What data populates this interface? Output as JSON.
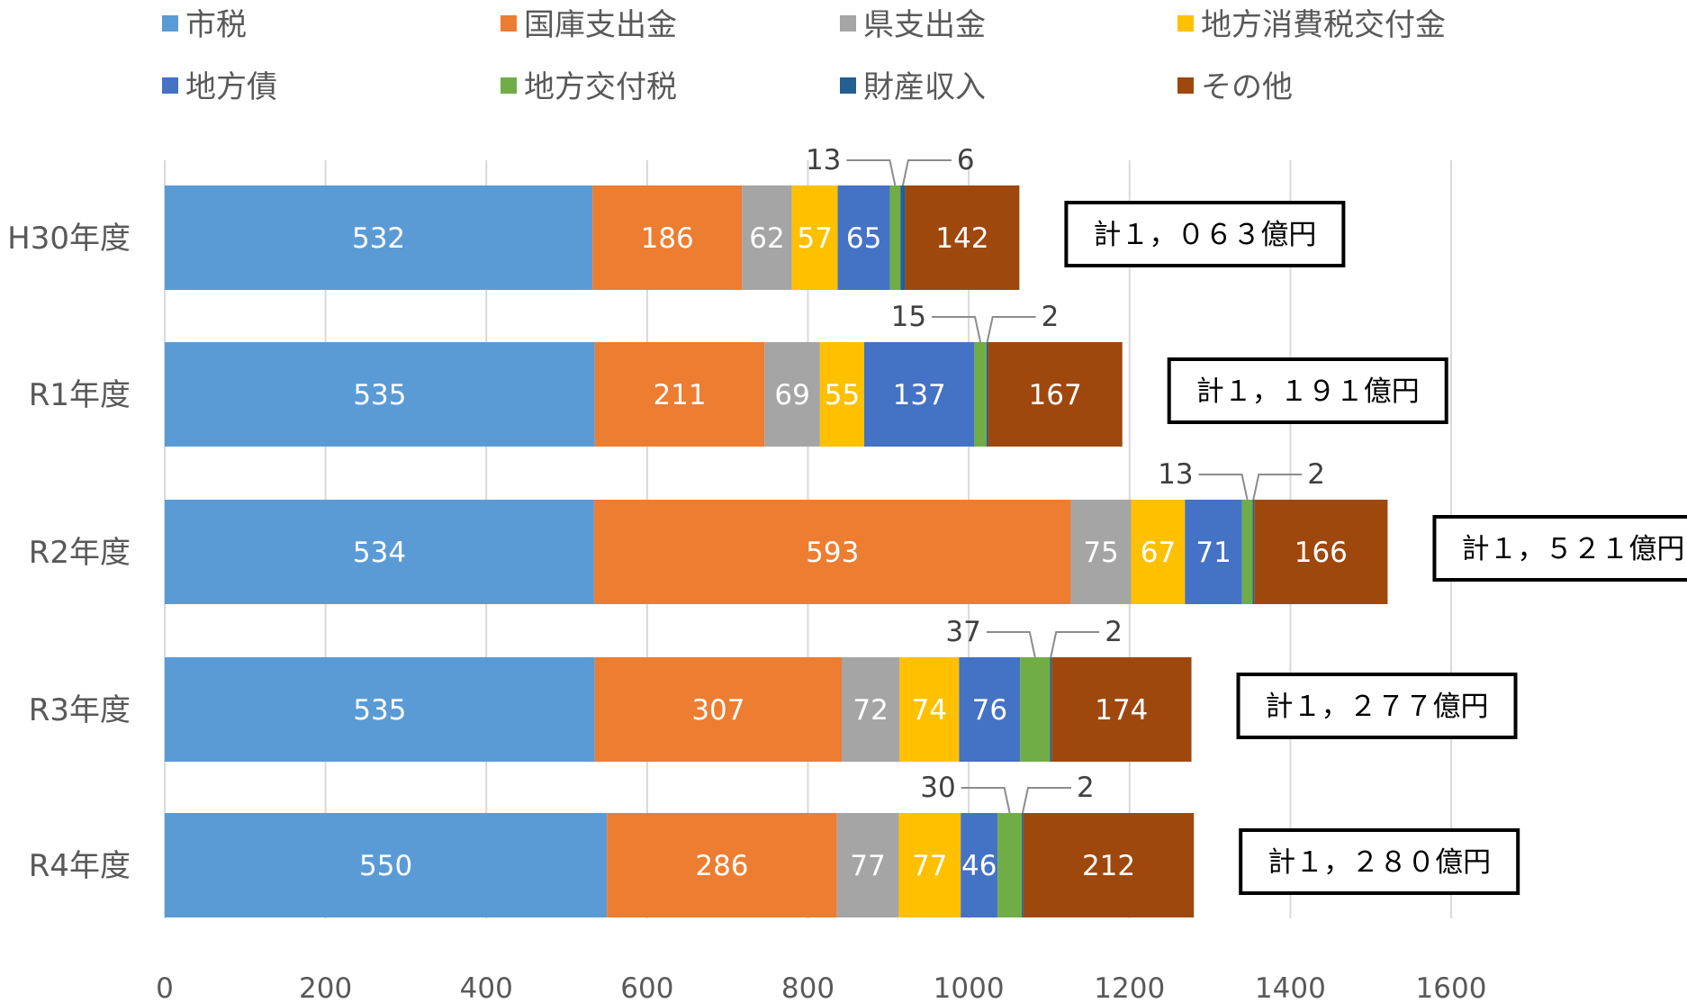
{
  "chart_data": {
    "type": "bar",
    "orientation": "horizontal",
    "stacked": true,
    "title": "",
    "xlabel": "",
    "ylabel": "",
    "xlim": [
      0,
      1600
    ],
    "xticks": [
      0,
      200,
      400,
      600,
      800,
      1000,
      1200,
      1400,
      1600
    ],
    "grid": true,
    "legend_position": "top",
    "categories": [
      "H30年度",
      "R1年度",
      "R2年度",
      "R3年度",
      "R4年度"
    ],
    "series": [
      {
        "name": "市税",
        "color": "#5B9BD5",
        "label_color": "#ffffff",
        "values": [
          532,
          535,
          534,
          535,
          550
        ]
      },
      {
        "name": "国庫支出金",
        "color": "#ED7D31",
        "label_color": "#ffffff",
        "values": [
          186,
          211,
          593,
          307,
          286
        ]
      },
      {
        "name": "県支出金",
        "color": "#A5A5A5",
        "label_color": "#ffffff",
        "values": [
          62,
          69,
          75,
          72,
          77
        ]
      },
      {
        "name": "地方消費税交付金",
        "color": "#FFC000",
        "label_color": "#ffffff",
        "values": [
          57,
          55,
          67,
          74,
          77
        ]
      },
      {
        "name": "地方債",
        "color": "#4472C4",
        "label_color": "#ffffff",
        "values": [
          65,
          137,
          71,
          76,
          46
        ]
      },
      {
        "name": "地方交付税",
        "color": "#70AD47",
        "label_color": "#ffffff",
        "values": [
          13,
          15,
          13,
          37,
          30
        ]
      },
      {
        "name": "財産収入",
        "color": "#255E91",
        "label_color": "#ffffff",
        "values": [
          6,
          2,
          2,
          2,
          2
        ]
      },
      {
        "name": "その他",
        "color": "#9E480E",
        "label_color": "#ffffff",
        "values": [
          142,
          167,
          166,
          174,
          212
        ]
      }
    ],
    "totals": [
      "計１，０６３億円",
      "計１，１９１億円",
      "計１，５２１億円",
      "計１，２７７億円",
      "計１，２８０億円"
    ]
  }
}
